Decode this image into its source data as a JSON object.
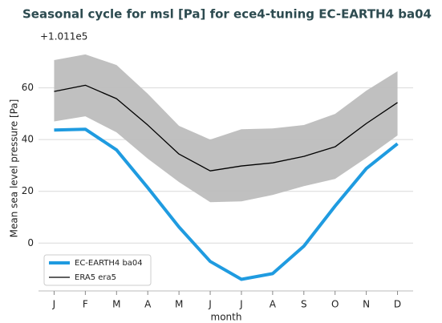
{
  "chart_data": {
    "type": "line",
    "title": "Seasonal cycle for msl [Pa] for ece4-tuning EC-EARTH4 ba04",
    "y_label": "Mean sea level pressure [Pa]",
    "x_label": "month",
    "offset_text": "+1.011e5",
    "categories": [
      "J",
      "F",
      "M",
      "A",
      "M",
      "J",
      "J",
      "A",
      "S",
      "O",
      "N",
      "D"
    ],
    "series": [
      {
        "name": "EC-EARTH4 ba04",
        "color": "#1f9be0",
        "values": [
          43.7,
          44,
          36,
          21.4,
          6.2,
          -7.1,
          -14,
          -11.8,
          -1.2,
          14.3,
          28.8,
          38.4
        ]
      },
      {
        "name": "ERA5 era5",
        "color": "#000000",
        "values": [
          58.6,
          61,
          55.8,
          45.6,
          34.4,
          27.9,
          29.8,
          31,
          33.5,
          37.2,
          46.2,
          54.3
        ]
      }
    ],
    "band": {
      "color": "#bdbdbd",
      "upper": [
        70.7,
        72.9,
        68.8,
        57.7,
        45.3,
        40,
        44,
        44.3,
        45.6,
        49.9,
        58.9,
        66.4
      ],
      "lower": [
        47,
        49,
        42.8,
        32.6,
        23.6,
        15.8,
        16.1,
        18.6,
        22,
        24.8,
        32.9,
        41.6
      ]
    },
    "ylim": [
      -18.5,
      80
    ],
    "yticks": [
      0,
      20,
      40,
      60
    ],
    "grid": true,
    "legend": "lower left"
  }
}
